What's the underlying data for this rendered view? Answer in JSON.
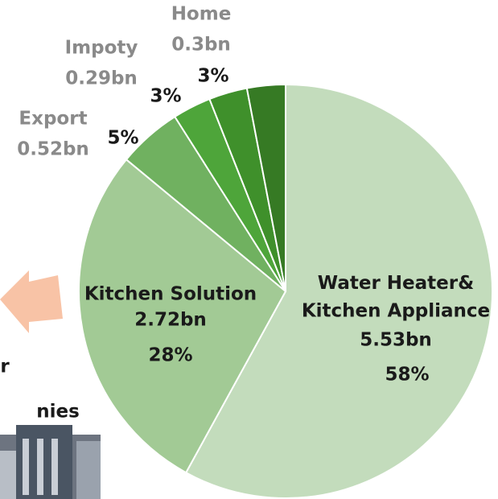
{
  "chart_data": {
    "type": "pie",
    "categories": [
      "Water Heater&\nKitchen Appliance",
      "Kitchen Solution",
      "Export",
      "Impoty",
      "Home",
      null
    ],
    "amounts": [
      "5.53bn",
      "2.72bn",
      "0.52bn",
      "0.29bn",
      "0.3bn",
      null
    ],
    "values": [
      58,
      28,
      5,
      3,
      3,
      3
    ],
    "value_labels": [
      "58%",
      "28%",
      "5%",
      "3%",
      "3%",
      null
    ],
    "colors": [
      "#c3dcbc",
      "#a2ca95",
      "#70b160",
      "#4ea53a",
      "#3f902b",
      "#367a24"
    ],
    "annotations": [
      "r",
      "nies"
    ]
  }
}
